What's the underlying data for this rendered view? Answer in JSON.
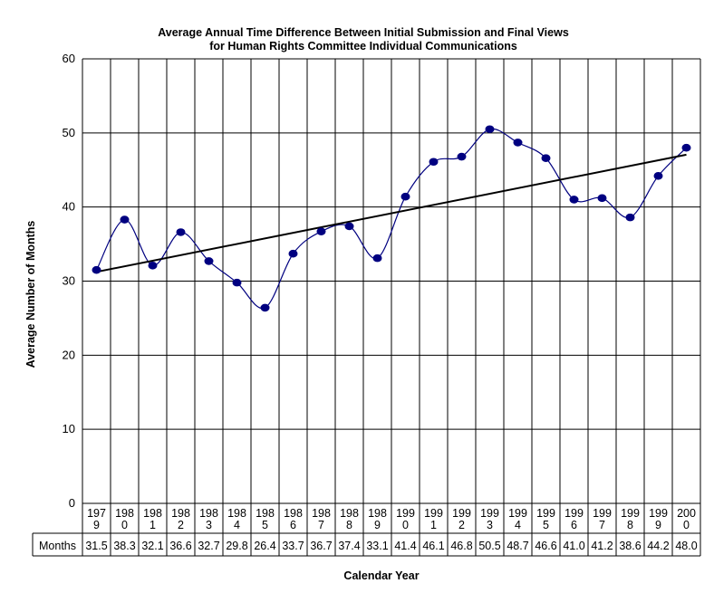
{
  "chart_data": {
    "type": "line",
    "title_line1": "Average Annual Time Difference Between Initial Submission and Final Views",
    "title_line2": "for Human Rights Committee Individual Communications",
    "xlabel": "Calendar Year",
    "ylabel": "Average Number of Months",
    "ylim": [
      0,
      60
    ],
    "yticks": [
      0,
      10,
      20,
      30,
      40,
      50,
      60
    ],
    "grid": "on",
    "categories": [
      [
        "197",
        "9"
      ],
      [
        "198",
        "0"
      ],
      [
        "198",
        "1"
      ],
      [
        "198",
        "2"
      ],
      [
        "198",
        "3"
      ],
      [
        "198",
        "4"
      ],
      [
        "198",
        "5"
      ],
      [
        "198",
        "6"
      ],
      [
        "198",
        "7"
      ],
      [
        "198",
        "8"
      ],
      [
        "198",
        "9"
      ],
      [
        "199",
        "0"
      ],
      [
        "199",
        "1"
      ],
      [
        "199",
        "2"
      ],
      [
        "199",
        "3"
      ],
      [
        "199",
        "4"
      ],
      [
        "199",
        "5"
      ],
      [
        "199",
        "6"
      ],
      [
        "199",
        "7"
      ],
      [
        "199",
        "8"
      ],
      [
        "199",
        "9"
      ],
      [
        "200",
        "0"
      ]
    ],
    "series": [
      {
        "name": "Months",
        "values": [
          31.5,
          38.3,
          32.1,
          36.6,
          32.7,
          29.8,
          26.4,
          33.7,
          36.7,
          37.4,
          33.1,
          41.4,
          46.1,
          46.8,
          50.5,
          48.7,
          46.6,
          41.0,
          41.2,
          38.6,
          44.2,
          48.0
        ],
        "labels": [
          "31.5",
          "38.3",
          "32.1",
          "36.6",
          "32.7",
          "29.8",
          "26.4",
          "33.7",
          "36.7",
          "37.4",
          "33.1",
          "41.4",
          "46.1",
          "46.8",
          "50.5",
          "48.7",
          "46.6",
          "41.0",
          "41.2",
          "38.6",
          "44.2",
          "48.0"
        ],
        "color": "#000080"
      }
    ],
    "trendline": {
      "color": "#000000"
    },
    "table_row_label": "Months"
  }
}
